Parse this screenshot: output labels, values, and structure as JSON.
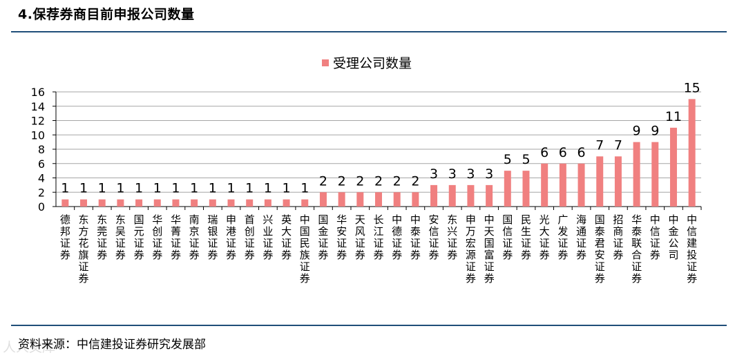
{
  "page": {
    "title": "4.保荐券商目前申报公司数量",
    "source": "资料来源：中信建投证券研究发展部",
    "watermark": "人人文库"
  },
  "colors": {
    "bar": "#f08080",
    "rule": "#1f4e79",
    "grid": "#a6a6a6",
    "axis": "#000000"
  },
  "chart_data": {
    "type": "bar",
    "legend": [
      "受理公司数量"
    ],
    "legend_position": "top-center",
    "grid": true,
    "ylim": [
      0,
      16
    ],
    "yticks": [
      0,
      2,
      4,
      6,
      8,
      10,
      12,
      14,
      16
    ],
    "categories": [
      "德邦证券",
      "东方花旗证券",
      "东莞证券",
      "东吴证券",
      "国元证券",
      "华创证券",
      "华菁证券",
      "南京证券",
      "瑞银证券",
      "申港证券",
      "首创证券",
      "兴业证券",
      "英大证券",
      "中国民族证券",
      "国金证券",
      "华安证券",
      "天风证券",
      "长江证券",
      "中德证券",
      "中泰证券",
      "安信证券",
      "东兴证券",
      "申万宏源证券",
      "中天国富证券",
      "国信证券",
      "民生证券",
      "光大证券",
      "广发证券",
      "海通证券",
      "国泰君安证券",
      "招商证券",
      "华泰联合证券",
      "中信证券",
      "中金公司",
      "中信建投证券"
    ],
    "series": [
      {
        "name": "受理公司数量",
        "values": [
          1,
          1,
          1,
          1,
          1,
          1,
          1,
          1,
          1,
          1,
          1,
          1,
          1,
          1,
          2,
          2,
          2,
          2,
          2,
          2,
          3,
          3,
          3,
          3,
          5,
          5,
          6,
          6,
          6,
          7,
          7,
          9,
          9,
          11,
          15
        ]
      }
    ]
  }
}
